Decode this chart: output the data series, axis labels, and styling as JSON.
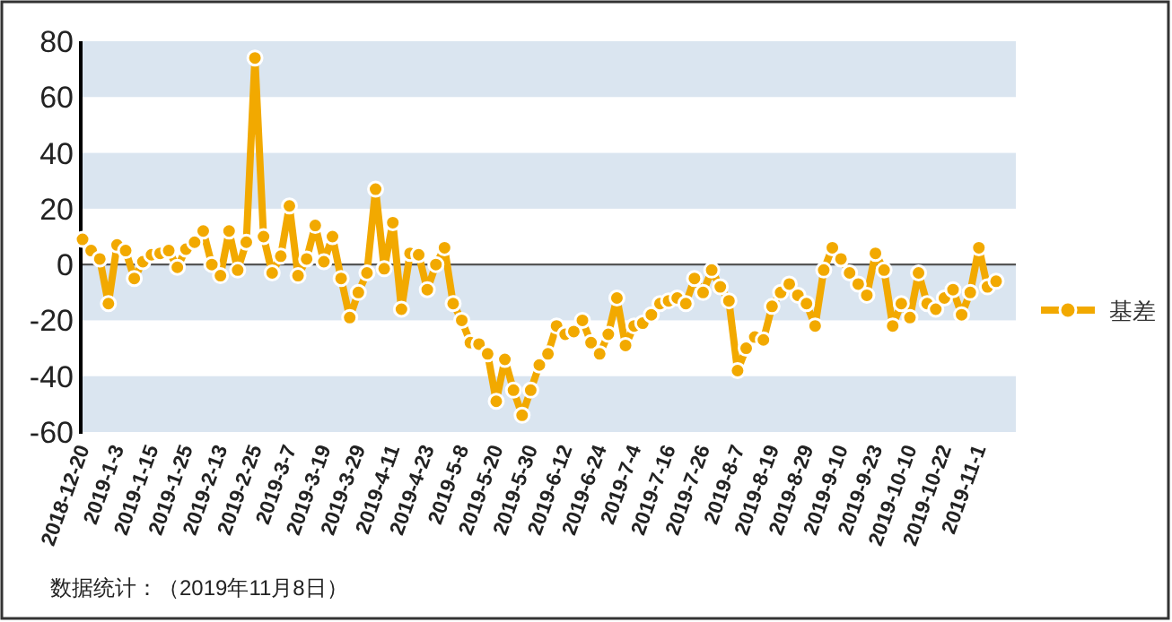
{
  "chart_data": {
    "type": "line",
    "categories": [
      "2018-12-20",
      null,
      null,
      null,
      "2019-1-3",
      null,
      null,
      null,
      "2019-1-15",
      null,
      null,
      null,
      "2019-1-25",
      null,
      null,
      null,
      "2019-2-13",
      null,
      null,
      null,
      "2019-2-25",
      null,
      null,
      null,
      "2019-3-7",
      null,
      null,
      null,
      "2019-3-19",
      null,
      null,
      null,
      "2019-3-29",
      null,
      null,
      null,
      "2019-4-11",
      null,
      null,
      null,
      "2019-4-23",
      null,
      null,
      null,
      "2019-5-8",
      null,
      null,
      null,
      "2019-5-20",
      null,
      null,
      null,
      "2019-5-30",
      null,
      null,
      null,
      "2019-6-12",
      null,
      null,
      null,
      "2019-6-24",
      null,
      null,
      null,
      "2019-7-4",
      null,
      null,
      null,
      "2019-7-16",
      null,
      null,
      null,
      "2019-7-26",
      null,
      null,
      null,
      "2019-8-7",
      null,
      null,
      null,
      "2019-8-19",
      null,
      null,
      null,
      "2019-8-29",
      null,
      null,
      null,
      "2019-9-10",
      null,
      null,
      null,
      "2019-9-23",
      null,
      null,
      null,
      "2019-10-10",
      null,
      null,
      null,
      "2019-10-22",
      null,
      null,
      null,
      "2019-11-1",
      null,
      null
    ],
    "series": [
      {
        "name": "基差",
        "color": "#f2a900",
        "values": [
          9,
          5,
          2,
          -14,
          7,
          5,
          -5,
          1,
          3.5,
          4,
          5,
          -1,
          5.5,
          8,
          12,
          0,
          -4,
          12,
          -2,
          8,
          74,
          10,
          -3,
          3,
          21,
          -4,
          2,
          14,
          1,
          10,
          -5,
          -19,
          -10,
          -3,
          27,
          -1.5,
          15,
          -16,
          4,
          3.5,
          -9,
          0,
          6,
          -14,
          -20,
          -28,
          -28.5,
          -32,
          -49,
          -34,
          -45,
          -54,
          -45,
          -36,
          -32,
          -22,
          -25,
          -24,
          -20,
          -28,
          -32,
          -25,
          -12,
          -29,
          -22,
          -21,
          -18,
          -14,
          -13,
          -12,
          -14,
          -5,
          -10,
          -2,
          -8,
          -13,
          -38,
          -30,
          -26,
          -27,
          -15,
          -10,
          -7,
          -11,
          -14,
          -22,
          -2,
          6,
          2,
          -3,
          -7,
          -11,
          4,
          -2,
          -22,
          -14,
          -19,
          -3,
          -14,
          -16,
          -12,
          -9,
          -18,
          -10,
          6,
          -8,
          -6
        ]
      }
    ],
    "ylim": [
      -60,
      80
    ],
    "yticks": [
      -60,
      -40,
      -20,
      0,
      20,
      40,
      60,
      80
    ],
    "grid": true,
    "legend": "right",
    "marker": "circle",
    "line_style": "solid",
    "annotations": [
      "数据统计：（2019年11月8日）"
    ]
  }
}
